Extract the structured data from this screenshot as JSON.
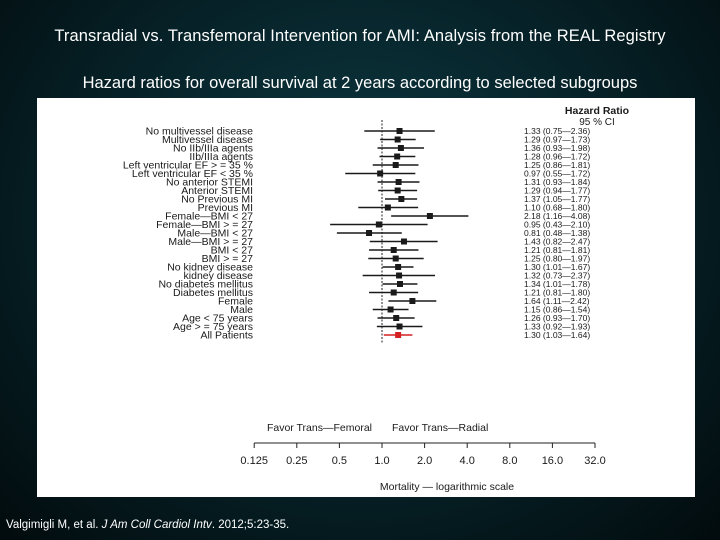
{
  "slide": {
    "title": "Transradial vs. Transfemoral Intervention for AMI: Analysis from the REAL Registry",
    "subtitle": "Hazard ratios for overall survival at 2 years according to selected subgroups"
  },
  "citation": {
    "authors": "Valgimigli M, et al.",
    "journal": "J Am Coll Cardiol Intv",
    "details": ". 2012;5:23-35."
  },
  "chart_data": {
    "type": "forest",
    "title": "Hazard ratios for overall survival at 2 years according to selected subgroups",
    "hr_header_line1": "Hazard Ratio",
    "hr_header_line2": "95 % CI",
    "xlabel": "Mortality — logarithmic scale",
    "x_scale": "log2",
    "x_ticks": [
      0.125,
      0.25,
      0.5,
      1.0,
      2.0,
      4.0,
      8.0,
      16.0,
      32.0
    ],
    "x_tick_labels": [
      "0.125",
      "0.25",
      "0.5",
      "1.0",
      "2.0",
      "4.0",
      "8.0",
      "16.0",
      "32.0"
    ],
    "xlim": [
      0.125,
      32
    ],
    "reference_line": 1.0,
    "favor_left": "Favor Trans—Femoral",
    "favor_right": "Favor Trans—Radial",
    "rows": [
      {
        "label": "No multivessel disease",
        "hr": 1.33,
        "lo": 0.75,
        "hi": 2.36,
        "ci_text": "1.33 (0.75—2.36)"
      },
      {
        "label": "Multivessel disease",
        "hr": 1.29,
        "lo": 0.97,
        "hi": 1.73,
        "ci_text": "1.29 (0.97—1.73)"
      },
      {
        "label": "No IIb/IIIa agents",
        "hr": 1.36,
        "lo": 0.93,
        "hi": 1.98,
        "ci_text": "1.36 (0.93—1.98)"
      },
      {
        "label": "IIb/IIIa agents",
        "hr": 1.28,
        "lo": 0.96,
        "hi": 1.72,
        "ci_text": "1.28 (0.96—1.72)"
      },
      {
        "label": "Left ventricular EF > = 35 %",
        "hr": 1.25,
        "lo": 0.86,
        "hi": 1.81,
        "ci_text": "1.25 (0.86—1.81)"
      },
      {
        "label": "Left ventricular EF < 35 %",
        "hr": 0.97,
        "lo": 0.55,
        "hi": 1.72,
        "ci_text": "0.97 (0.55—1.72)"
      },
      {
        "label": "No anterior STEMI",
        "hr": 1.31,
        "lo": 0.93,
        "hi": 1.84,
        "ci_text": "1.31 (0.93—1.84)"
      },
      {
        "label": "Anterior STEMI",
        "hr": 1.29,
        "lo": 0.94,
        "hi": 1.77,
        "ci_text": "1.29 (0.94—1.77)"
      },
      {
        "label": "No Previous MI",
        "hr": 1.37,
        "lo": 1.05,
        "hi": 1.77,
        "ci_text": "1.37 (1.05—1.77)"
      },
      {
        "label": "Previous MI",
        "hr": 1.1,
        "lo": 0.68,
        "hi": 1.8,
        "ci_text": "1.10 (0.68—1.80)"
      },
      {
        "label": "Female—BMI < 27",
        "hr": 2.18,
        "lo": 1.16,
        "hi": 4.08,
        "ci_text": "2.18 (1.16—4.08)"
      },
      {
        "label": "Female—BMI > = 27",
        "hr": 0.95,
        "lo": 0.43,
        "hi": 2.1,
        "ci_text": "0.95 (0.43—2.10)"
      },
      {
        "label": "Male—BMI < 27",
        "hr": 0.81,
        "lo": 0.48,
        "hi": 1.38,
        "ci_text": "0.81 (0.48—1.38)"
      },
      {
        "label": "Male—BMI > = 27",
        "hr": 1.43,
        "lo": 0.82,
        "hi": 2.47,
        "ci_text": "1.43 (0.82—2.47)"
      },
      {
        "label": "BMI < 27",
        "hr": 1.21,
        "lo": 0.81,
        "hi": 1.81,
        "ci_text": "1.21 (0.81—1.81)"
      },
      {
        "label": "BMI > = 27",
        "hr": 1.25,
        "lo": 0.8,
        "hi": 1.97,
        "ci_text": "1.25 (0.80—1.97)"
      },
      {
        "label": "No kidney disease",
        "hr": 1.3,
        "lo": 1.01,
        "hi": 1.67,
        "ci_text": "1.30 (1.01—1.67)"
      },
      {
        "label": "kidney disease",
        "hr": 1.32,
        "lo": 0.73,
        "hi": 2.37,
        "ci_text": "1.32 (0.73—2.37)"
      },
      {
        "label": "No diabetes mellitus",
        "hr": 1.34,
        "lo": 1.01,
        "hi": 1.78,
        "ci_text": "1.34 (1.01—1.78)"
      },
      {
        "label": "Diabetes mellitus",
        "hr": 1.21,
        "lo": 0.81,
        "hi": 1.8,
        "ci_text": "1.21 (0.81—1.80)"
      },
      {
        "label": "Female",
        "hr": 1.64,
        "lo": 1.11,
        "hi": 2.42,
        "ci_text": "1.64 (1.11—2.42)"
      },
      {
        "label": "Male",
        "hr": 1.15,
        "lo": 0.86,
        "hi": 1.54,
        "ci_text": "1.15 (0.86—1.54)"
      },
      {
        "label": "Age < 75 years",
        "hr": 1.26,
        "lo": 0.93,
        "hi": 1.7,
        "ci_text": "1.26 (0.93—1.70)"
      },
      {
        "label": "Age > = 75 years",
        "hr": 1.33,
        "lo": 0.92,
        "hi": 1.93,
        "ci_text": "1.33 (0.92—1.93)"
      },
      {
        "label": "All Patients",
        "hr": 1.3,
        "lo": 1.03,
        "hi": 1.64,
        "ci_text": "1.30 (1.03—1.64)",
        "highlight": true
      }
    ],
    "colors": {
      "marker": "#1a1a1a",
      "highlight": "#d42020",
      "text": "#1a1a1a",
      "axis": "#222222"
    }
  }
}
